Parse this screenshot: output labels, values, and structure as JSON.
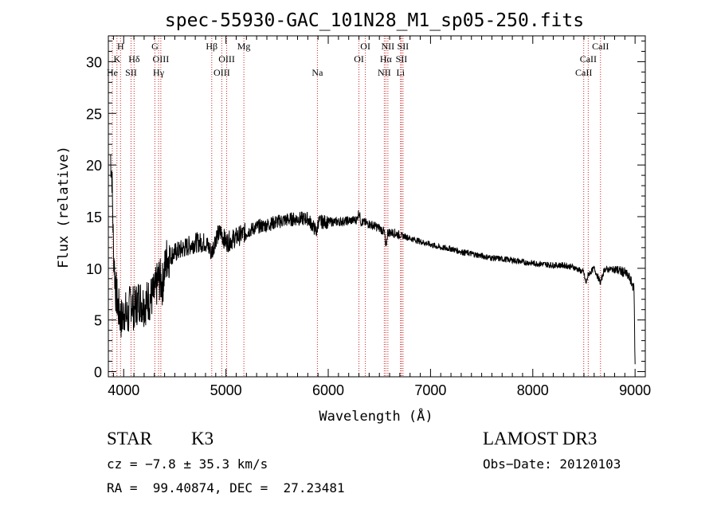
{
  "chart_data": {
    "type": "line",
    "title": "spec-55930-GAC_101N28_M1_sp05-250.fits",
    "xlabel": "Wavelength (Å)",
    "ylabel": "Flux (relative)",
    "xlim": [
      3850,
      9100
    ],
    "ylim": [
      -0.5,
      32.5
    ],
    "xticks": [
      4000,
      5000,
      6000,
      7000,
      8000,
      9000
    ],
    "xtick_labels": [
      "4000",
      "5000",
      "6000",
      "7000",
      "8000",
      "9000"
    ],
    "yticks": [
      0,
      5,
      10,
      15,
      20,
      25,
      30
    ],
    "ytick_labels": [
      "0",
      "5",
      "10",
      "15",
      "20",
      "25",
      "30"
    ],
    "series": [
      {
        "name": "Flux",
        "x": [
          3870,
          3885,
          3900,
          3920,
          3950,
          3980,
          4010,
          4040,
          4070,
          4100,
          4150,
          4200,
          4250,
          4300,
          4340,
          4380,
          4420,
          4500,
          4600,
          4700,
          4800,
          4861,
          4900,
          4950,
          5000,
          5100,
          5200,
          5300,
          5400,
          5500,
          5600,
          5700,
          5800,
          5890,
          5900,
          6000,
          6100,
          6200,
          6280,
          6300,
          6320,
          6400,
          6500,
          6550,
          6563,
          6580,
          6650,
          6700,
          6750,
          6800,
          6900,
          7000,
          7100,
          7200,
          7300,
          7400,
          7500,
          7600,
          7700,
          7800,
          7900,
          8000,
          8100,
          8200,
          8300,
          8400,
          8498,
          8520,
          8542,
          8600,
          8662,
          8700,
          8800,
          8900,
          8950,
          8990,
          9000
        ],
        "y": [
          21,
          19,
          12,
          8,
          6,
          5,
          6,
          5,
          7,
          6,
          7,
          6.5,
          7,
          7.5,
          9,
          8.5,
          11,
          11.5,
          12,
          12.5,
          12.5,
          11.5,
          13,
          13.5,
          12.5,
          13,
          13.5,
          14,
          14.2,
          14.5,
          14.7,
          14.8,
          14.8,
          13.5,
          14.5,
          14.5,
          14.5,
          14.6,
          14.7,
          15.5,
          14.5,
          14.3,
          13.9,
          13.5,
          11.8,
          13.5,
          13.4,
          13.2,
          13.1,
          12.9,
          12.6,
          12.3,
          12.0,
          11.9,
          11.6,
          11.4,
          11.2,
          11.0,
          10.9,
          10.8,
          10.6,
          10.5,
          10.4,
          10.3,
          10.3,
          10.1,
          9.6,
          8.5,
          9.4,
          10.0,
          8.6,
          9.9,
          9.9,
          9.6,
          9.0,
          8.0,
          0.5
        ],
        "color": "#000000"
      }
    ],
    "line_color": "#cc2222",
    "spectral_lines": [
      {
        "label": "He",
        "wavelength": 3889,
        "row": 3
      },
      {
        "label": "K",
        "wavelength": 3934,
        "row": 2
      },
      {
        "label": "H",
        "wavelength": 3969,
        "row": 1
      },
      {
        "label": "SII",
        "wavelength": 4072,
        "row": 3
      },
      {
        "label": "Hδ",
        "wavelength": 4102,
        "row": 2
      },
      {
        "label": "G",
        "wavelength": 4305,
        "row": 1
      },
      {
        "label": "Hγ",
        "wavelength": 4341,
        "row": 3
      },
      {
        "label": "OIII",
        "wavelength": 4363,
        "row": 2
      },
      {
        "label": "Hβ",
        "wavelength": 4861,
        "row": 1
      },
      {
        "label": "OIII",
        "wavelength": 4959,
        "row": 3
      },
      {
        "label": "OIII",
        "wavelength": 5007,
        "row": 2
      },
      {
        "label": "Mg",
        "wavelength": 5175,
        "row": 1
      },
      {
        "label": "Na",
        "wavelength": 5894,
        "row": 3
      },
      {
        "label": "OI",
        "wavelength": 6300,
        "row": 2
      },
      {
        "label": "OI",
        "wavelength": 6363,
        "row": 1
      },
      {
        "label": "NII",
        "wavelength": 6548,
        "row": 3
      },
      {
        "label": "Hα",
        "wavelength": 6563,
        "row": 2
      },
      {
        "label": "NII",
        "wavelength": 6583,
        "row": 1
      },
      {
        "label": "Li",
        "wavelength": 6707,
        "row": 3
      },
      {
        "label": "SII",
        "wavelength": 6716,
        "row": 2
      },
      {
        "label": "SII",
        "wavelength": 6731,
        "row": 1
      },
      {
        "label": "CaII",
        "wavelength": 8498,
        "row": 3
      },
      {
        "label": "CaII",
        "wavelength": 8542,
        "row": 2
      },
      {
        "label": "CaII",
        "wavelength": 8662,
        "row": 1
      }
    ]
  },
  "info": {
    "object_class": "STAR",
    "subclass": "K3",
    "survey": "LAMOST DR3",
    "cz": "cz = −7.8 ± 35.3 km/s",
    "obs_date": "Obs−Date: 20120103",
    "coords": "RA =  99.40874, DEC =  27.23481"
  }
}
